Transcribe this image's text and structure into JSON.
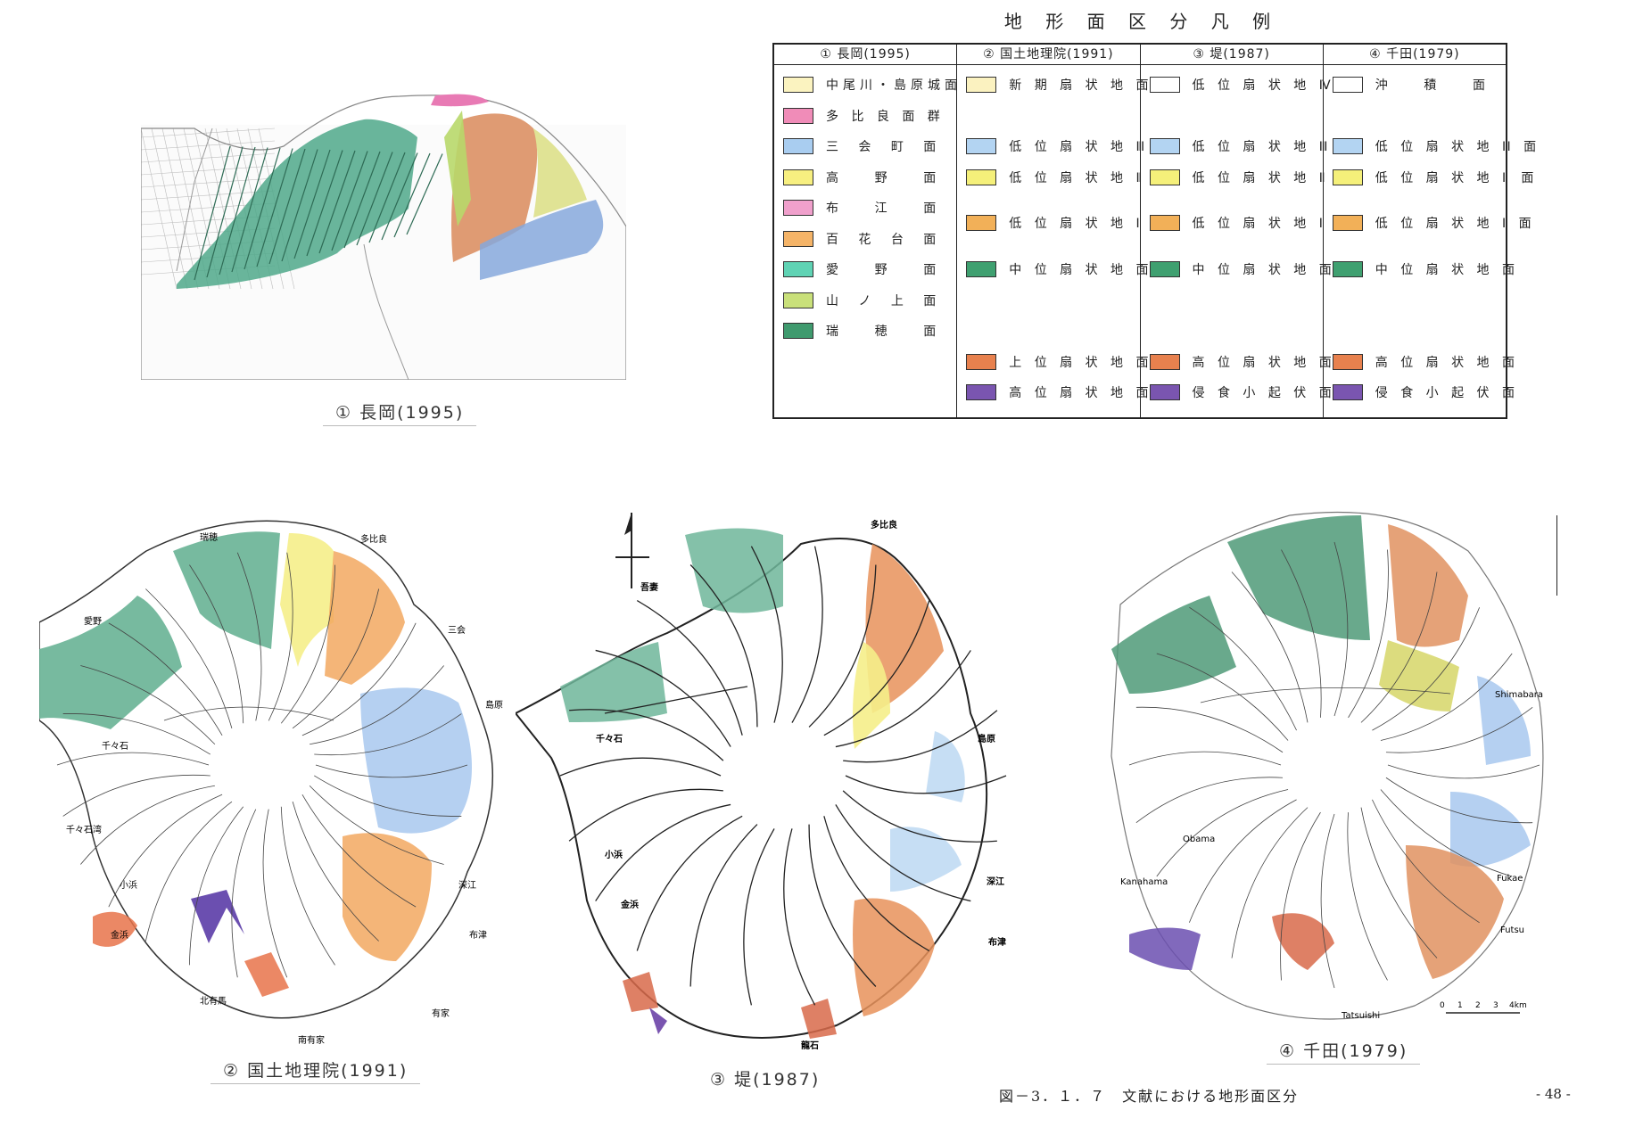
{
  "legend": {
    "title": "地 形 面 区 分 凡 例",
    "columns": [
      {
        "header": "① 長岡(1995)",
        "items": [
          {
            "label": "中尾川・島原城面",
            "color": "#fbf3c0",
            "slot": 0
          },
          {
            "label": "多 比 良 面 群",
            "color": "#f08cb8",
            "slot": 1
          },
          {
            "label": "三 会 町 面",
            "color": "#a9cdf0",
            "slot": 2
          },
          {
            "label": "高 野 面",
            "color": "#f7ef80",
            "slot": 3
          },
          {
            "label": "布 江 面",
            "color": "#f0a0cc",
            "slot": 4
          },
          {
            "label": "百 花 台 面",
            "color": "#f5b468",
            "slot": 5
          },
          {
            "label": "愛 野 面",
            "color": "#5fd3b4",
            "slot": 6
          },
          {
            "label": "山 ノ 上 面",
            "color": "#c9e07a",
            "slot": 7
          },
          {
            "label": "瑞 穂 面",
            "color": "#3f9a6e",
            "slot": 8
          }
        ]
      },
      {
        "header": "② 国土地理院(1991)",
        "items": [
          {
            "label": "新 期 扇 状 地 面",
            "color": "#fbf2c0",
            "slot": 0
          },
          {
            "label": "低 位 扇 状 地 Ⅲ 面",
            "color": "#b3d4f2",
            "slot": 2
          },
          {
            "label": "低 位 扇 状 地 Ⅱ 面",
            "color": "#f5f07a",
            "slot": 3
          },
          {
            "label": "低 位 扇 状 地 Ⅰ 面",
            "color": "#f2b058",
            "slot": 4.5
          },
          {
            "label": "中 位 扇 状 地 面",
            "color": "#3fa070",
            "slot": 6
          },
          {
            "label": "上 位 扇 状 地 面",
            "color": "#e8814e",
            "slot": 9
          },
          {
            "label": "高 位 扇 状 地 面",
            "color": "#7a55b0",
            "slot": 10
          }
        ]
      },
      {
        "header": "③ 堤(1987)",
        "items": [
          {
            "label": "低 位 扇 状 地 Ⅳ 面",
            "color": "#ffffff",
            "slot": 0
          },
          {
            "label": "低 位 扇 状 地 Ⅲ 面",
            "color": "#b3d4f2",
            "slot": 2
          },
          {
            "label": "低 位 扇 状 地 Ⅱ 面",
            "color": "#f5f07a",
            "slot": 3
          },
          {
            "label": "低 位 扇 状 地 Ⅰ 面",
            "color": "#f2b058",
            "slot": 4.5
          },
          {
            "label": "中 位 扇 状 地 面",
            "color": "#3fa070",
            "slot": 6
          },
          {
            "label": "高 位 扇 状 地 面",
            "color": "#e8814e",
            "slot": 9
          },
          {
            "label": "侵 食 小 起 伏 面",
            "color": "#7a55b0",
            "slot": 10
          }
        ]
      },
      {
        "header": "④ 千田(1979)",
        "items": [
          {
            "label": "沖 積 面",
            "color": "#ffffff",
            "slot": 0
          },
          {
            "label": "低 位 扇 状 地 Ⅲ 面",
            "color": "#b3d4f2",
            "slot": 2
          },
          {
            "label": "低 位 扇 状 地 Ⅱ 面",
            "color": "#f5f07a",
            "slot": 3
          },
          {
            "label": "低 位 扇 状 地 Ⅰ 面",
            "color": "#f2b058",
            "slot": 4.5
          },
          {
            "label": "中 位 扇 状 地 面",
            "color": "#3fa070",
            "slot": 6
          },
          {
            "label": "高 位 扇 状 地 面",
            "color": "#e8814e",
            "slot": 9
          },
          {
            "label": "侵 食 小 起 伏 面",
            "color": "#7a55b0",
            "slot": 10
          }
        ]
      }
    ]
  },
  "maps": {
    "map1": {
      "caption": "① 長岡(1995)"
    },
    "map2": {
      "caption": "② 国土地理院(1991)",
      "labels": {
        "mizuho": "瑞穂",
        "tahira": "多比良",
        "aino": "愛野",
        "mie": "三会",
        "shimabara": "島原",
        "chijiwa": "千々石",
        "chijiwa_bay": "千々石湾",
        "obama": "小浜",
        "fukae": "深江",
        "kanahama": "金浜",
        "futsu": "布津",
        "kitaarima": "北有馬",
        "arie": "有家",
        "minamiarima": "南有家"
      }
    },
    "map3": {
      "caption": "③ 堤(1987)",
      "labels": {
        "tahira": "多比良",
        "azuma": "吾妻",
        "chijiwa": "千々石",
        "shimabara": "島原",
        "obama": "小浜",
        "fukae": "深江",
        "kanahama": "金浜",
        "futsu": "布津",
        "tatsuishi": "龍石"
      }
    },
    "map4": {
      "caption": "④ 千田(1979)",
      "labels": {
        "shimabara": "Shimabara",
        "obama": "Obama",
        "kanahama": "Kanahama",
        "fukae": "Fukae",
        "futsu": "Futsu",
        "tatsuishi": "Tatsuishi"
      },
      "scale": {
        "ticks": [
          "0",
          "1",
          "2",
          "3",
          "4km"
        ]
      }
    }
  },
  "figure_caption": "図－3．１．７　文献における地形面区分",
  "page_number": "- 48 -",
  "colors": {
    "green": "#3f9a6e",
    "orange": "#f2b058",
    "yellow": "#f5f07a",
    "blue": "#b3d4f2",
    "red": "#e8814e",
    "purple": "#7a55b0",
    "pink": "#f08cb8",
    "cream": "#fbf3c0"
  }
}
